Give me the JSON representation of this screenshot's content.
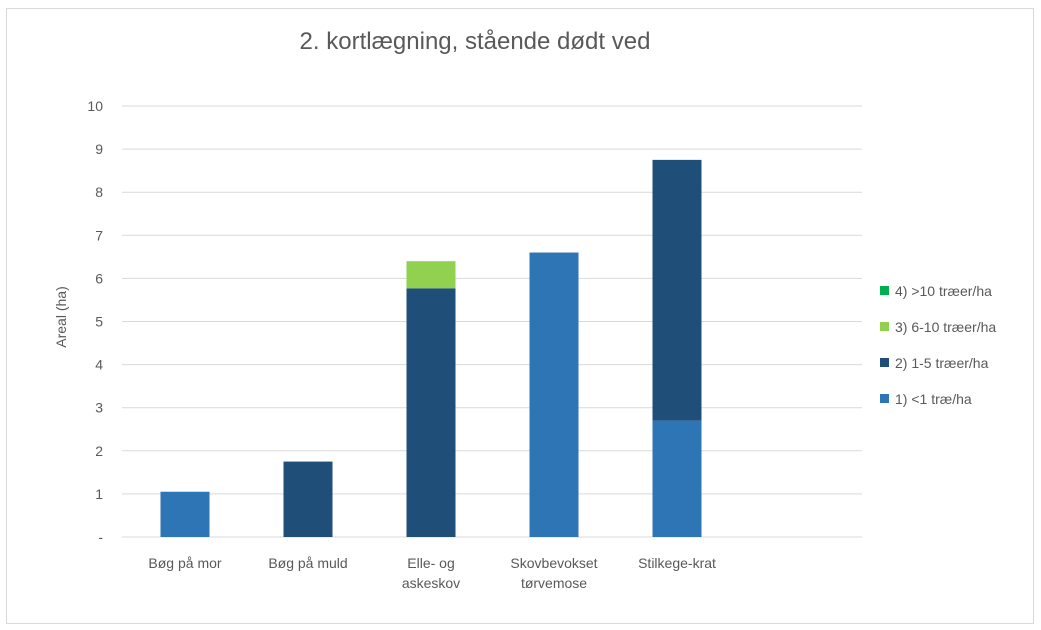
{
  "chart_data": {
    "type": "bar",
    "stacked": true,
    "title": "2. kortlægning, stående dødt ved",
    "xlabel": "",
    "ylabel": "Areal (ha)",
    "ylim": [
      0,
      10
    ],
    "yticks": [
      0,
      1,
      2,
      3,
      4,
      5,
      6,
      7,
      8,
      9,
      10
    ],
    "ytick_labels": [
      "-",
      "1",
      "2",
      "3",
      "4",
      "5",
      "6",
      "7",
      "8",
      "9",
      "10"
    ],
    "grid": true,
    "legend_position": "right",
    "categories": [
      [
        "Bøg på mor"
      ],
      [
        "Bøg på muld"
      ],
      [
        "Elle- og",
        "askeskov"
      ],
      [
        "Skovbevokset",
        "tørvemose"
      ],
      [
        "Stilkege-krat"
      ]
    ],
    "series": [
      {
        "name": "1) <1 træ/ha",
        "color": "#2e75b6",
        "values": [
          1.05,
          0,
          0,
          6.6,
          2.7
        ]
      },
      {
        "name": "2) 1-5 træer/ha",
        "color": "#1f4e79",
        "values": [
          0,
          1.75,
          5.77,
          0,
          6.05
        ]
      },
      {
        "name": "3) 6-10 træer/ha",
        "color": "#92d050",
        "values": [
          0,
          0,
          0.63,
          0,
          0
        ]
      },
      {
        "name": "4) >10 træer/ha",
        "color": "#00b050",
        "values": [
          0,
          0,
          0,
          0,
          0
        ]
      }
    ]
  }
}
